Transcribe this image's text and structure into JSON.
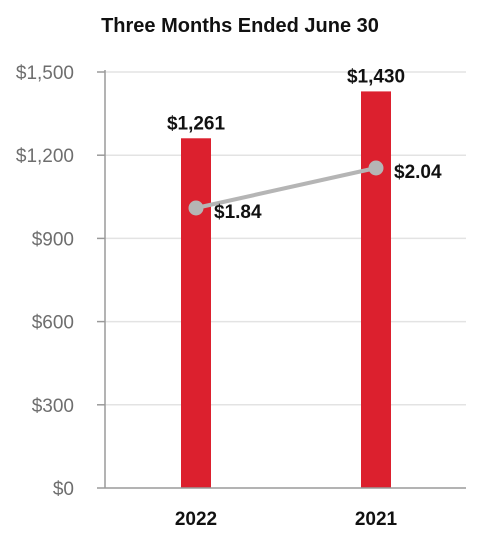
{
  "chart_data": {
    "type": "bar",
    "title": "Three Months Ended June 30",
    "categories": [
      "2022",
      "2021"
    ],
    "series": [
      {
        "type": "bar",
        "values": [
          1261,
          1430
        ],
        "labels": [
          "$1,261",
          "$1,430"
        ]
      },
      {
        "type": "line",
        "values": [
          1.84,
          2.04
        ],
        "labels": [
          "$1.84",
          "$2.04"
        ]
      }
    ],
    "ylim": [
      0,
      1500
    ],
    "yticks": [
      0,
      300,
      600,
      900,
      1200,
      1500
    ],
    "ytick_labels": [
      "$0",
      "$300",
      "$600",
      "$900",
      "$1,200",
      "$1,500"
    ],
    "grid": true,
    "colors": {
      "bar": "#dc202e",
      "line": "#b5b5b5",
      "grid": "#e3e3e3",
      "axis": "#9a9a9a"
    }
  }
}
